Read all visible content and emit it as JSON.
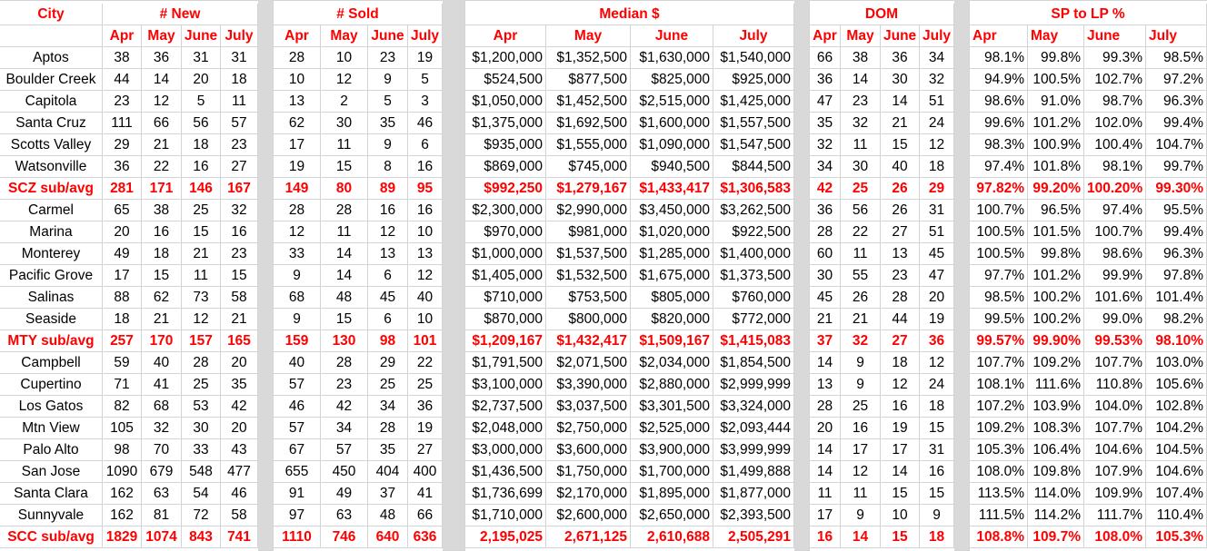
{
  "groups": {
    "city": "City",
    "new": "# New",
    "sold": "# Sold",
    "median": "Median $",
    "dom": "DOM",
    "sp_lp": "SP to LP %"
  },
  "months_short": [
    "Apr",
    "May",
    "June",
    "July"
  ],
  "rows": [
    {
      "city": "Aptos",
      "new": [
        "38",
        "36",
        "31",
        "31"
      ],
      "sold": [
        "28",
        "10",
        "23",
        "19"
      ],
      "median": [
        "$1,200,000",
        "$1,352,500",
        "$1,630,000",
        "$1,540,000"
      ],
      "dom": [
        "66",
        "38",
        "36",
        "34"
      ],
      "sp_lp": [
        "98.1%",
        "99.8%",
        "99.3%",
        "98.5%"
      ]
    },
    {
      "city": "Boulder Creek",
      "new": [
        "44",
        "14",
        "20",
        "18"
      ],
      "sold": [
        "10",
        "12",
        "9",
        "5"
      ],
      "median": [
        "$524,500",
        "$877,500",
        "$825,000",
        "$925,000"
      ],
      "dom": [
        "36",
        "14",
        "30",
        "32"
      ],
      "sp_lp": [
        "94.9%",
        "100.5%",
        "102.7%",
        "97.2%"
      ]
    },
    {
      "city": "Capitola",
      "new": [
        "23",
        "12",
        "5",
        "11"
      ],
      "sold": [
        "13",
        "2",
        "5",
        "3"
      ],
      "median": [
        "$1,050,000",
        "$1,452,500",
        "$2,515,000",
        "$1,425,000"
      ],
      "dom": [
        "47",
        "23",
        "14",
        "51"
      ],
      "sp_lp": [
        "98.6%",
        "91.0%",
        "98.7%",
        "96.3%"
      ]
    },
    {
      "city": "Santa Cruz",
      "new": [
        "111",
        "66",
        "56",
        "57"
      ],
      "sold": [
        "62",
        "30",
        "35",
        "46"
      ],
      "median": [
        "$1,375,000",
        "$1,692,500",
        "$1,600,000",
        "$1,557,500"
      ],
      "dom": [
        "35",
        "32",
        "21",
        "24"
      ],
      "sp_lp": [
        "99.6%",
        "101.2%",
        "102.0%",
        "99.4%"
      ]
    },
    {
      "city": "Scotts Valley",
      "new": [
        "29",
        "21",
        "18",
        "23"
      ],
      "sold": [
        "17",
        "11",
        "9",
        "6"
      ],
      "median": [
        "$935,000",
        "$1,555,000",
        "$1,090,000",
        "$1,547,500"
      ],
      "dom": [
        "32",
        "11",
        "15",
        "12"
      ],
      "sp_lp": [
        "98.3%",
        "100.9%",
        "100.4%",
        "104.7%"
      ]
    },
    {
      "city": "Watsonville",
      "new": [
        "36",
        "22",
        "16",
        "27"
      ],
      "sold": [
        "19",
        "15",
        "8",
        "16"
      ],
      "median": [
        "$869,000",
        "$745,000",
        "$940,500",
        "$844,500"
      ],
      "dom": [
        "34",
        "30",
        "40",
        "18"
      ],
      "sp_lp": [
        "97.4%",
        "101.8%",
        "98.1%",
        "99.7%"
      ]
    },
    {
      "city": "SCZ sub/avg",
      "total": true,
      "new": [
        "281",
        "171",
        "146",
        "167"
      ],
      "sold": [
        "149",
        "80",
        "89",
        "95"
      ],
      "median": [
        "$992,250",
        "$1,279,167",
        "$1,433,417",
        "$1,306,583"
      ],
      "dom": [
        "42",
        "25",
        "26",
        "29"
      ],
      "sp_lp": [
        "97.82%",
        "99.20%",
        "100.20%",
        "99.30%"
      ]
    },
    {
      "city": "Carmel",
      "new": [
        "65",
        "38",
        "25",
        "32"
      ],
      "sold": [
        "28",
        "28",
        "16",
        "16"
      ],
      "median": [
        "$2,300,000",
        "$2,990,000",
        "$3,450,000",
        "$3,262,500"
      ],
      "dom": [
        "36",
        "56",
        "26",
        "31"
      ],
      "sp_lp": [
        "100.7%",
        "96.5%",
        "97.4%",
        "95.5%"
      ]
    },
    {
      "city": "Marina",
      "new": [
        "20",
        "16",
        "15",
        "16"
      ],
      "sold": [
        "12",
        "11",
        "12",
        "10"
      ],
      "median": [
        "$970,000",
        "$981,000",
        "$1,020,000",
        "$922,500"
      ],
      "dom": [
        "28",
        "22",
        "27",
        "51"
      ],
      "sp_lp": [
        "100.5%",
        "101.5%",
        "100.7%",
        "99.4%"
      ]
    },
    {
      "city": "Monterey",
      "new": [
        "49",
        "18",
        "21",
        "23"
      ],
      "sold": [
        "33",
        "14",
        "13",
        "13"
      ],
      "median": [
        "$1,000,000",
        "$1,537,500",
        "$1,285,000",
        "$1,400,000"
      ],
      "dom": [
        "60",
        "11",
        "13",
        "45"
      ],
      "sp_lp": [
        "100.5%",
        "99.8%",
        "98.6%",
        "96.3%"
      ]
    },
    {
      "city": "Pacific Grove",
      "new": [
        "17",
        "15",
        "11",
        "15"
      ],
      "sold": [
        "9",
        "14",
        "6",
        "12"
      ],
      "median": [
        "$1,405,000",
        "$1,532,500",
        "$1,675,000",
        "$1,373,500"
      ],
      "dom": [
        "30",
        "55",
        "23",
        "47"
      ],
      "sp_lp": [
        "97.7%",
        "101.2%",
        "99.9%",
        "97.8%"
      ]
    },
    {
      "city": "Salinas",
      "new": [
        "88",
        "62",
        "73",
        "58"
      ],
      "sold": [
        "68",
        "48",
        "45",
        "40"
      ],
      "median": [
        "$710,000",
        "$753,500",
        "$805,000",
        "$760,000"
      ],
      "dom": [
        "45",
        "26",
        "28",
        "20"
      ],
      "sp_lp": [
        "98.5%",
        "100.2%",
        "101.6%",
        "101.4%"
      ]
    },
    {
      "city": "Seaside",
      "new": [
        "18",
        "21",
        "12",
        "21"
      ],
      "sold": [
        "9",
        "15",
        "6",
        "10"
      ],
      "median": [
        "$870,000",
        "$800,000",
        "$820,000",
        "$772,000"
      ],
      "dom": [
        "21",
        "21",
        "44",
        "19"
      ],
      "sp_lp": [
        "99.5%",
        "100.2%",
        "99.0%",
        "98.2%"
      ]
    },
    {
      "city": "MTY sub/avg",
      "total": true,
      "new": [
        "257",
        "170",
        "157",
        "165"
      ],
      "sold": [
        "159",
        "130",
        "98",
        "101"
      ],
      "median": [
        "$1,209,167",
        "$1,432,417",
        "$1,509,167",
        "$1,415,083"
      ],
      "dom": [
        "37",
        "32",
        "27",
        "36"
      ],
      "sp_lp": [
        "99.57%",
        "99.90%",
        "99.53%",
        "98.10%"
      ]
    },
    {
      "city": "Campbell",
      "new": [
        "59",
        "40",
        "28",
        "20"
      ],
      "sold": [
        "40",
        "28",
        "29",
        "22"
      ],
      "median": [
        "$1,791,500",
        "$2,071,500",
        "$2,034,000",
        "$1,854,500"
      ],
      "dom": [
        "14",
        "9",
        "18",
        "12"
      ],
      "sp_lp": [
        "107.7%",
        "109.2%",
        "107.7%",
        "103.0%"
      ]
    },
    {
      "city": "Cupertino",
      "new": [
        "71",
        "41",
        "25",
        "35"
      ],
      "sold": [
        "57",
        "23",
        "25",
        "25"
      ],
      "median": [
        "$3,100,000",
        "$3,390,000",
        "$2,880,000",
        "$2,999,999"
      ],
      "dom": [
        "13",
        "9",
        "12",
        "24"
      ],
      "sp_lp": [
        "108.1%",
        "111.6%",
        "110.8%",
        "105.6%"
      ]
    },
    {
      "city": "Los Gatos",
      "new": [
        "82",
        "68",
        "53",
        "42"
      ],
      "sold": [
        "46",
        "42",
        "34",
        "36"
      ],
      "median": [
        "$2,737,500",
        "$3,037,500",
        "$3,301,500",
        "$3,324,000"
      ],
      "dom": [
        "28",
        "25",
        "16",
        "18"
      ],
      "sp_lp": [
        "107.2%",
        "103.9%",
        "104.0%",
        "102.8%"
      ]
    },
    {
      "city": "Mtn View",
      "new": [
        "105",
        "32",
        "30",
        "20"
      ],
      "sold": [
        "57",
        "34",
        "28",
        "19"
      ],
      "median": [
        "$2,048,000",
        "$2,750,000",
        "$2,525,000",
        "$2,093,444"
      ],
      "dom": [
        "20",
        "16",
        "19",
        "15"
      ],
      "sp_lp": [
        "109.2%",
        "108.3%",
        "107.7%",
        "104.2%"
      ]
    },
    {
      "city": "Palo Alto",
      "new": [
        "98",
        "70",
        "33",
        "43"
      ],
      "sold": [
        "67",
        "57",
        "35",
        "27"
      ],
      "median": [
        "$3,000,000",
        "$3,600,000",
        "$3,900,000",
        "$3,999,999"
      ],
      "dom": [
        "14",
        "17",
        "17",
        "31"
      ],
      "sp_lp": [
        "105.3%",
        "106.4%",
        "104.6%",
        "104.5%"
      ]
    },
    {
      "city": "San Jose",
      "new": [
        "1090",
        "679",
        "548",
        "477"
      ],
      "sold": [
        "655",
        "450",
        "404",
        "400"
      ],
      "median": [
        "$1,436,500",
        "$1,750,000",
        "$1,700,000",
        "$1,499,888"
      ],
      "dom": [
        "14",
        "12",
        "14",
        "16"
      ],
      "sp_lp": [
        "108.0%",
        "109.8%",
        "107.9%",
        "104.6%"
      ]
    },
    {
      "city": "Santa Clara",
      "new": [
        "162",
        "63",
        "54",
        "46"
      ],
      "sold": [
        "91",
        "49",
        "37",
        "41"
      ],
      "median": [
        "$1,736,699",
        "$2,170,000",
        "$1,895,000",
        "$1,877,000"
      ],
      "dom": [
        "11",
        "11",
        "15",
        "15"
      ],
      "sp_lp": [
        "113.5%",
        "114.0%",
        "109.9%",
        "107.4%"
      ]
    },
    {
      "city": "Sunnyvale",
      "new": [
        "162",
        "81",
        "72",
        "58"
      ],
      "sold": [
        "97",
        "63",
        "48",
        "66"
      ],
      "median": [
        "$1,710,000",
        "$2,600,000",
        "$2,650,000",
        "$2,393,500"
      ],
      "dom": [
        "17",
        "9",
        "10",
        "9"
      ],
      "sp_lp": [
        "111.5%",
        "114.2%",
        "111.7%",
        "110.4%"
      ]
    },
    {
      "city": "SCC sub/avg",
      "total": true,
      "new": [
        "1829",
        "1074",
        "843",
        "741"
      ],
      "sold": [
        "1110",
        "746",
        "640",
        "636"
      ],
      "median": [
        "2,195,025",
        "2,671,125",
        "2,610,688",
        "2,505,291"
      ],
      "dom": [
        "16",
        "14",
        "15",
        "18"
      ],
      "sp_lp": [
        "108.8%",
        "109.7%",
        "108.0%",
        "105.3%"
      ]
    }
  ],
  "colors": {
    "header_red": "#ff0000",
    "gap_gray": "#d9d9d9",
    "gridline": "#d4d4d4"
  }
}
